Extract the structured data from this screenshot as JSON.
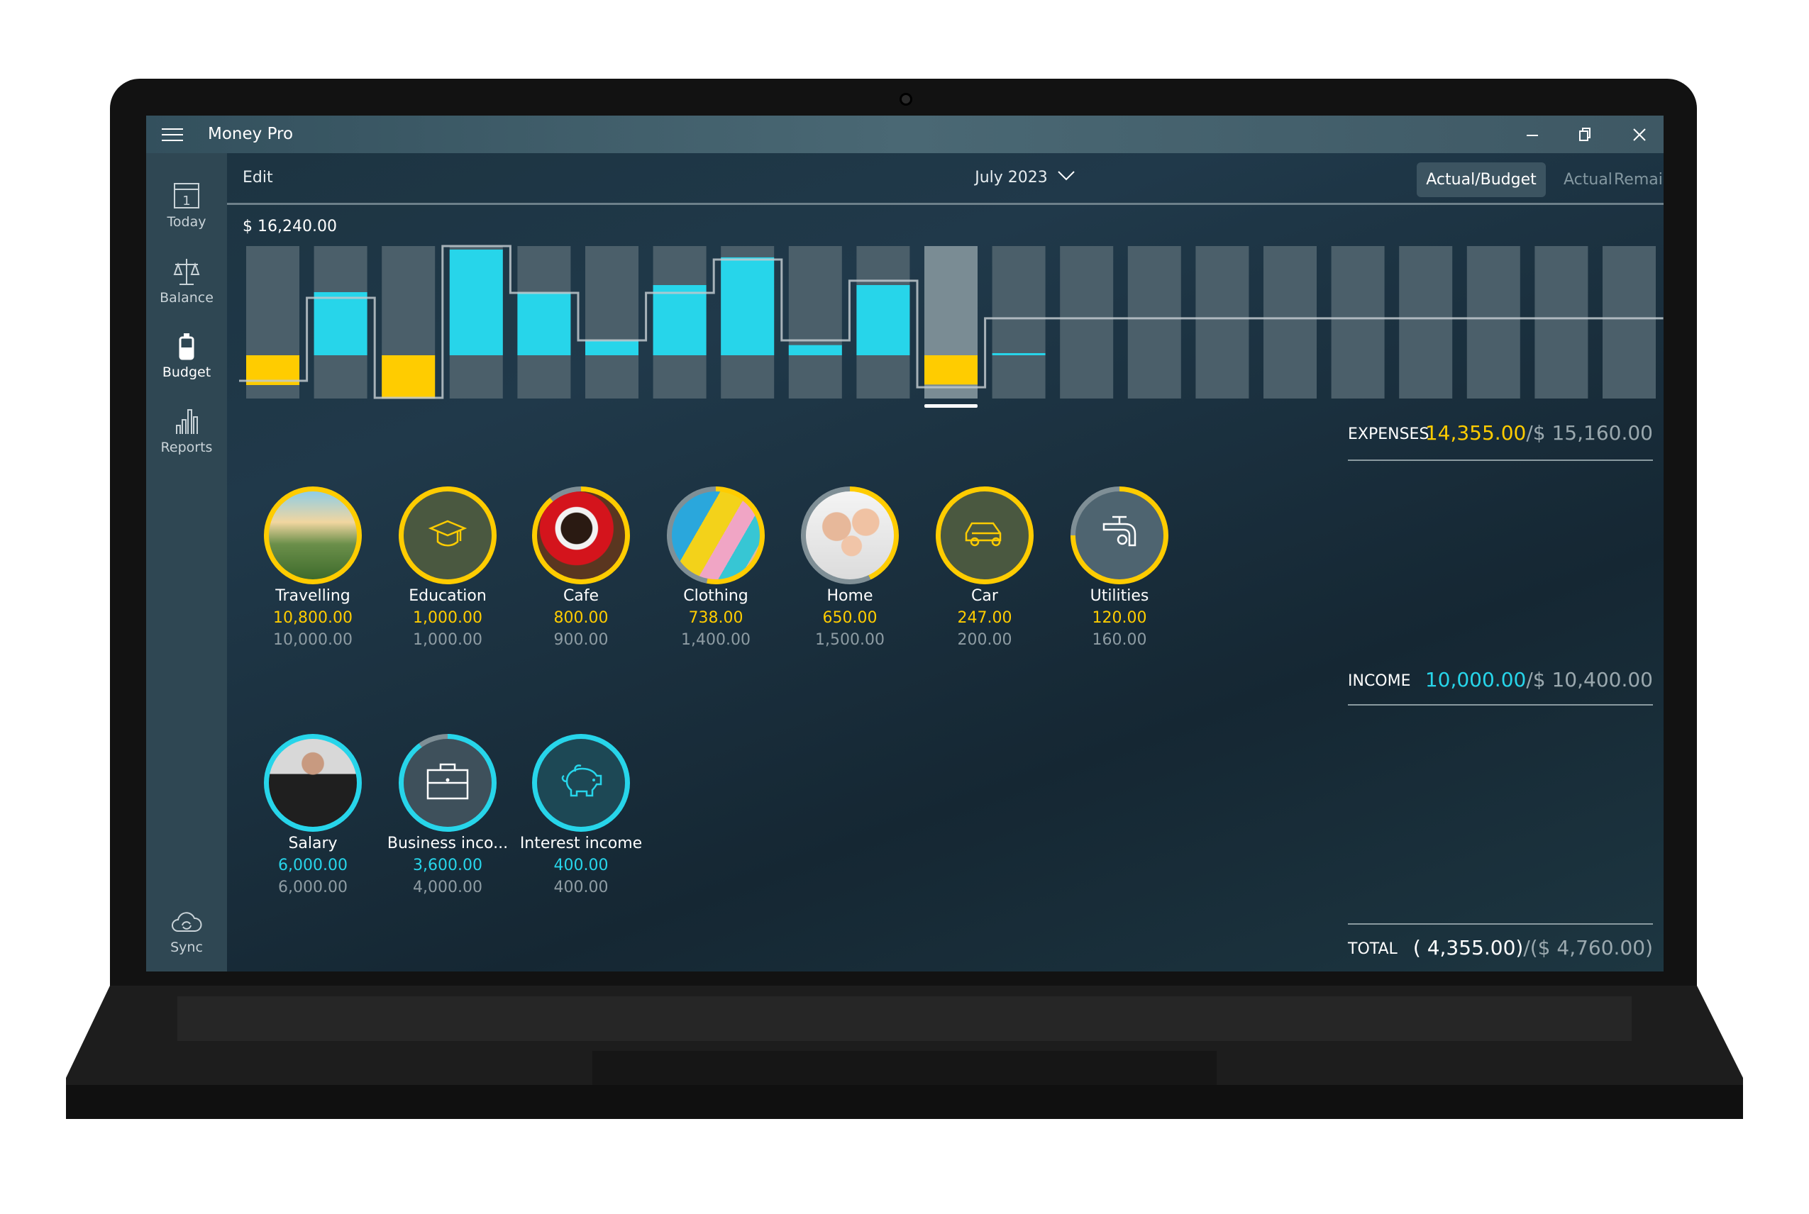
{
  "app": {
    "title": "Money Pro",
    "menu_icon": "hamburger-icon",
    "window_controls": [
      "minimize-icon",
      "restore-icon",
      "close-icon"
    ]
  },
  "sidebar": {
    "items": [
      {
        "label": "Today",
        "icon": "calendar-icon",
        "active": false,
        "icon_text": "1"
      },
      {
        "label": "Balance",
        "icon": "scales-icon",
        "active": false
      },
      {
        "label": "Budget",
        "icon": "budget-jar-icon",
        "active": true
      },
      {
        "label": "Reports",
        "icon": "bar-chart-icon",
        "active": false
      }
    ],
    "sync": {
      "label": "Sync",
      "icon": "cloud-sync-icon"
    }
  },
  "toolbar": {
    "edit": "Edit",
    "period": "July 2023",
    "segments": [
      {
        "label": "Actual/Budget",
        "selected": true
      },
      {
        "label": "Actual",
        "selected": false
      },
      {
        "label": "Remaining",
        "selected": false
      }
    ]
  },
  "colors": {
    "expense": "#ffcc00",
    "income": "#27d5ea",
    "budget_line": "#c0c8cc",
    "bar_bg": "#4b5f6a",
    "bar_selected": "#7a8c94"
  },
  "chart_data": {
    "type": "bar",
    "title": "$ 16,240.00",
    "ylim": [
      -6435,
      16240
    ],
    "selected_index": 10,
    "actual": [
      -4430,
      9390,
      -6435,
      15720,
      9320,
      2215,
      10440,
      14560,
      1510,
      10440,
      -4355,
      200,
      null,
      null,
      null,
      null,
      null,
      null,
      null,
      null,
      null
    ],
    "budget": [
      -3800,
      8540,
      -6330,
      16240,
      9280,
      2215,
      9280,
      14240,
      2215,
      11080,
      -4760,
      5490,
      5490,
      5490,
      5490,
      5490,
      5490,
      5490,
      5490,
      5490,
      5490
    ]
  },
  "expenses": {
    "label": "EXPENSES",
    "actual": "14,355.00",
    "budget": "/$ 15,160.00",
    "categories": [
      {
        "name": "Travelling",
        "actual": "10,800.00",
        "budget": "10,000.00",
        "progress": 1.0,
        "image": "travel-photo"
      },
      {
        "name": "Education",
        "actual": "1,000.00",
        "budget": "1,000.00",
        "progress": 1.0,
        "icon": "graduation-cap-icon"
      },
      {
        "name": "Cafe",
        "actual": "800.00",
        "budget": "900.00",
        "progress": 0.89,
        "image": "coffee-photo"
      },
      {
        "name": "Clothing",
        "actual": "738.00",
        "budget": "1,400.00",
        "progress": 0.53,
        "image": "shopping-bags-photo"
      },
      {
        "name": "Home",
        "actual": "650.00",
        "budget": "1,500.00",
        "progress": 0.43,
        "image": "family-photo"
      },
      {
        "name": "Car",
        "actual": "247.00",
        "budget": "200.00",
        "progress": 1.0,
        "icon": "car-icon"
      },
      {
        "name": "Utilities",
        "actual": "120.00",
        "budget": "160.00",
        "progress": 0.75,
        "icon": "water-tap-icon"
      }
    ]
  },
  "income": {
    "label": "INCOME",
    "actual": "10,000.00",
    "budget": "/$ 10,400.00",
    "categories": [
      {
        "name": "Salary",
        "actual": "6,000.00",
        "budget": "6,000.00",
        "progress": 1.0,
        "image": "businessman-photo"
      },
      {
        "name": "Business inco...",
        "actual": "3,600.00",
        "budget": "4,000.00",
        "progress": 0.9,
        "icon": "briefcase-icon"
      },
      {
        "name": "Interest income",
        "actual": "400.00",
        "budget": "400.00",
        "progress": 1.0,
        "icon": "piggy-bank-icon"
      }
    ]
  },
  "total": {
    "label": "TOTAL",
    "actual": "( 4,355.00)",
    "budget": "/($ 4,760.00)"
  }
}
